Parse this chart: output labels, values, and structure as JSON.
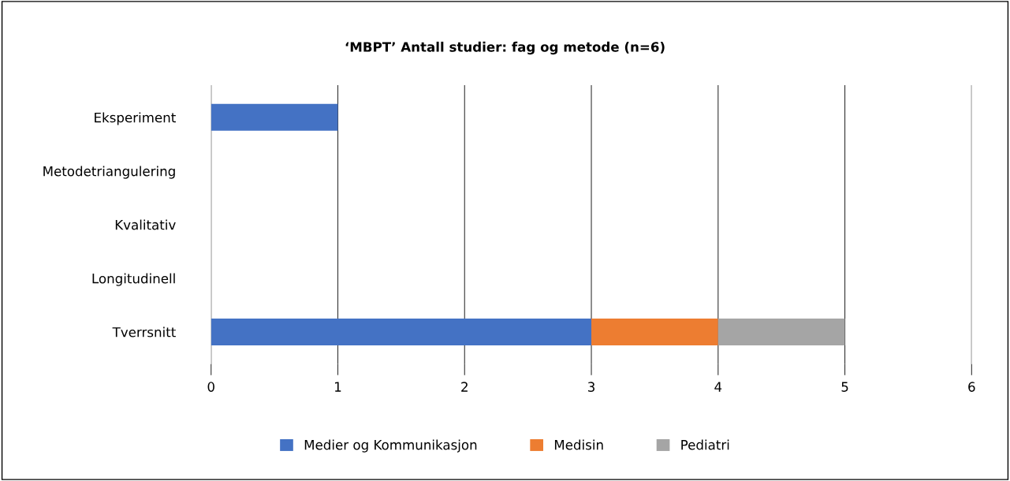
{
  "chart_data": {
    "type": "bar",
    "orientation": "horizontal",
    "stacked": true,
    "title": "‘MBPT’ Antall studier: fag og metode (n=6)",
    "categories": [
      "Eksperiment",
      "Metodetriangulering",
      "Kvalitativ",
      "Longitudinell",
      "Tverrsnitt"
    ],
    "series": [
      {
        "name": "Medier og Kommunikasjon",
        "color": "#4472c4",
        "values": [
          1,
          0,
          0,
          0,
          3
        ]
      },
      {
        "name": "Medisin",
        "color": "#ed7d31",
        "values": [
          0,
          0,
          0,
          0,
          1
        ]
      },
      {
        "name": "Pediatri",
        "color": "#a5a5a5",
        "values": [
          0,
          0,
          0,
          0,
          1
        ]
      }
    ],
    "xlim": [
      0,
      6
    ],
    "xticks": [
      0,
      1,
      2,
      3,
      4,
      5,
      6
    ],
    "grid": "x",
    "legend": "bottom"
  }
}
